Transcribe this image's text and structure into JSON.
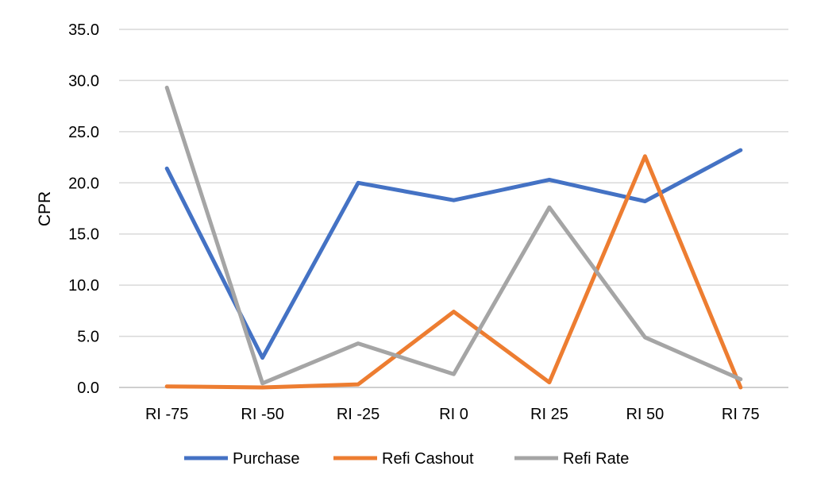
{
  "chart_data": {
    "type": "line",
    "title": "",
    "xlabel": "",
    "ylabel": "CPR",
    "ylim": [
      0,
      35
    ],
    "yticks": [
      "0.0",
      "5.0",
      "10.0",
      "15.0",
      "20.0",
      "25.0",
      "30.0",
      "35.0"
    ],
    "ytick_values": [
      0,
      5,
      10,
      15,
      20,
      25,
      30,
      35
    ],
    "grid": true,
    "legend_position": "bottom",
    "categories": [
      "RI -75",
      "RI -50",
      "RI -25",
      "RI 0",
      "RI 25",
      "RI 50",
      "RI 75"
    ],
    "series": [
      {
        "name": "Purchase",
        "color": "#4472C4",
        "values": [
          21.4,
          2.9,
          20.0,
          18.3,
          20.3,
          18.2,
          23.2
        ]
      },
      {
        "name": "Refi Cashout",
        "color": "#ED7D31",
        "values": [
          0.1,
          0.0,
          0.3,
          7.4,
          0.5,
          22.6,
          0.0
        ]
      },
      {
        "name": "Refi Rate",
        "color": "#A5A5A5",
        "values": [
          29.3,
          0.4,
          4.3,
          1.3,
          17.6,
          4.9,
          0.8
        ]
      }
    ]
  }
}
